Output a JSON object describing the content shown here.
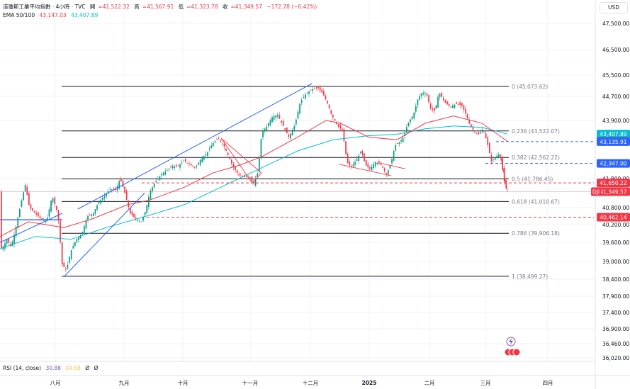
{
  "header": {
    "title": "道瓊斯工業平均指數 · 4小時 · TVC",
    "ohlc": [
      {
        "label": "開",
        "value": "=41,522.32"
      },
      {
        "label": "高",
        "value": "=41,567.91"
      },
      {
        "label": "低",
        "value": "=41,323.78"
      },
      {
        "label": "收",
        "value": "=41,349.57"
      }
    ],
    "change": "−172.78 (−0.42%)",
    "ema_label": "EMA 50/100",
    "ema_values": [
      "43,147.03",
      "43,407.89"
    ]
  },
  "currency": "USD",
  "rsi": {
    "label": "RSI (14, close)",
    "values": [
      "30.88",
      "34.58"
    ],
    "extra": [
      "Ø",
      "Ø"
    ]
  },
  "colors": {
    "up": "#089981",
    "down": "#f23645",
    "ema50": "#f23645",
    "ema100": "#00bcd4",
    "trendline": "#2962ff",
    "fib": "#131722",
    "dashed_red": "#f23645",
    "dashed_blue": "#2962ff"
  },
  "chart_data": {
    "type": "candlestick",
    "x_tick_labels": [
      "八月",
      "九月",
      "十月",
      "十一月",
      "十二月",
      "2025",
      "二月",
      "三月",
      "四月"
    ],
    "y_tick_labels": [
      "47,500.00",
      "46,500.00",
      "45,500.00",
      "44,700.00",
      "43,900.00",
      "41,800.00",
      "40,800.00",
      "40,200.00",
      "39,600.00",
      "39,000.00",
      "38,400.00",
      "37,900.00",
      "37,400.00",
      "36,900.00",
      "36,460.00",
      "36,020.00"
    ],
    "y_range": [
      35900,
      48000
    ],
    "fib_levels": [
      {
        "label": "0 (45,073.62)",
        "value": 45073.62
      },
      {
        "label": "0.236 (43,522.07)",
        "value": 43522.07
      },
      {
        "label": "0.382 (42,562.22)",
        "value": 42562.22
      },
      {
        "label": "0.5 (41,786.45)",
        "value": 41786.45
      },
      {
        "label": "0.618 (41,010.67)",
        "value": 41010.67
      },
      {
        "label": "0.786 (39,906.18)",
        "value": 39906.18
      },
      {
        "label": "1 (38,499.27)",
        "value": 38499.27
      }
    ],
    "price_tags": [
      {
        "text": "43,407.89",
        "value": 43407.89,
        "kind": "ema100"
      },
      {
        "text": "43,147.03",
        "value": 43147.03,
        "kind": "ema50"
      },
      {
        "text": "43,135.91",
        "value": 43135.91,
        "kind": "blue_line"
      },
      {
        "text": "42,347.00",
        "value": 42347.0,
        "kind": "blue_line"
      },
      {
        "text": "41,650.22",
        "value": 41650.22,
        "kind": "red_line"
      },
      {
        "text": "41,349.57",
        "value": 41349.57,
        "kind": "last",
        "prefix": "DJI"
      },
      {
        "text": "40,462.14",
        "value": 40462.14,
        "kind": "red_line"
      }
    ],
    "ohlc_path": [
      [
        0,
        39350
      ],
      [
        6,
        39500
      ],
      [
        10,
        39700
      ],
      [
        16,
        39450
      ],
      [
        22,
        40000
      ],
      [
        30,
        40950
      ],
      [
        36,
        41600
      ],
      [
        42,
        40800
      ],
      [
        50,
        40600
      ],
      [
        58,
        40400
      ],
      [
        66,
        40300
      ],
      [
        74,
        41200
      ],
      [
        82,
        40600
      ],
      [
        88,
        38900
      ],
      [
        94,
        38700
      ],
      [
        100,
        39300
      ],
      [
        108,
        39700
      ],
      [
        116,
        39900
      ],
      [
        124,
        40500
      ],
      [
        132,
        40600
      ],
      [
        140,
        41000
      ],
      [
        148,
        41200
      ],
      [
        156,
        41450
      ],
      [
        164,
        41400
      ],
      [
        170,
        41800
      ],
      [
        176,
        41350
      ],
      [
        184,
        40600
      ],
      [
        192,
        40400
      ],
      [
        200,
        40300
      ],
      [
        206,
        40700
      ],
      [
        212,
        41350
      ],
      [
        220,
        41700
      ],
      [
        228,
        41950
      ],
      [
        236,
        42100
      ],
      [
        244,
        42250
      ],
      [
        252,
        42250
      ],
      [
        260,
        42450
      ],
      [
        268,
        42300
      ],
      [
        276,
        42200
      ],
      [
        284,
        42500
      ],
      [
        292,
        42700
      ],
      [
        300,
        43050
      ],
      [
        308,
        43250
      ],
      [
        316,
        43000
      ],
      [
        322,
        42650
      ],
      [
        330,
        42200
      ],
      [
        338,
        41900
      ],
      [
        346,
        41850
      ],
      [
        352,
        41900
      ],
      [
        358,
        41600
      ],
      [
        364,
        42000
      ],
      [
        370,
        43500
      ],
      [
        376,
        43650
      ],
      [
        384,
        44000
      ],
      [
        392,
        44100
      ],
      [
        400,
        43700
      ],
      [
        408,
        43300
      ],
      [
        416,
        43700
      ],
      [
        424,
        44500
      ],
      [
        432,
        44800
      ],
      [
        440,
        44950
      ],
      [
        448,
        45050
      ],
      [
        456,
        44800
      ],
      [
        462,
        44500
      ],
      [
        468,
        44100
      ],
      [
        476,
        43750
      ],
      [
        484,
        43500
      ],
      [
        490,
        42400
      ],
      [
        496,
        42200
      ],
      [
        504,
        42500
      ],
      [
        510,
        42800
      ],
      [
        516,
        42300
      ],
      [
        522,
        42150
      ],
      [
        530,
        42400
      ],
      [
        538,
        42300
      ],
      [
        546,
        41950
      ],
      [
        552,
        42350
      ],
      [
        558,
        43000
      ],
      [
        564,
        43100
      ],
      [
        570,
        43300
      ],
      [
        576,
        43800
      ],
      [
        584,
        44100
      ],
      [
        590,
        44600
      ],
      [
        596,
        44850
      ],
      [
        602,
        44800
      ],
      [
        608,
        44300
      ],
      [
        614,
        44200
      ],
      [
        620,
        44850
      ],
      [
        628,
        44500
      ],
      [
        636,
        44350
      ],
      [
        644,
        44450
      ],
      [
        652,
        44400
      ],
      [
        658,
        44100
      ],
      [
        664,
        43700
      ],
      [
        670,
        43500
      ],
      [
        676,
        43400
      ],
      [
        682,
        43600
      ],
      [
        688,
        43100
      ],
      [
        694,
        42400
      ],
      [
        700,
        42600
      ],
      [
        706,
        42700
      ],
      [
        712,
        41700
      ],
      [
        716,
        41350
      ]
    ],
    "ema50_path": [
      [
        0,
        39800
      ],
      [
        40,
        40300
      ],
      [
        90,
        40100
      ],
      [
        130,
        40400
      ],
      [
        180,
        40900
      ],
      [
        210,
        41050
      ],
      [
        260,
        41500
      ],
      [
        300,
        42000
      ],
      [
        340,
        42300
      ],
      [
        370,
        42600
      ],
      [
        420,
        43300
      ],
      [
        460,
        43900
      ],
      [
        480,
        43800
      ],
      [
        520,
        43300
      ],
      [
        560,
        43200
      ],
      [
        600,
        43800
      ],
      [
        640,
        44050
      ],
      [
        680,
        43800
      ],
      [
        716,
        43147
      ]
    ],
    "ema100_path": [
      [
        0,
        39400
      ],
      [
        50,
        39800
      ],
      [
        100,
        39700
      ],
      [
        150,
        40100
      ],
      [
        200,
        40450
      ],
      [
        260,
        40900
      ],
      [
        320,
        41600
      ],
      [
        370,
        42200
      ],
      [
        420,
        42800
      ],
      [
        470,
        43200
      ],
      [
        520,
        43350
      ],
      [
        560,
        43400
      ],
      [
        600,
        43600
      ],
      [
        640,
        43700
      ],
      [
        680,
        43650
      ],
      [
        716,
        43408
      ]
    ]
  }
}
